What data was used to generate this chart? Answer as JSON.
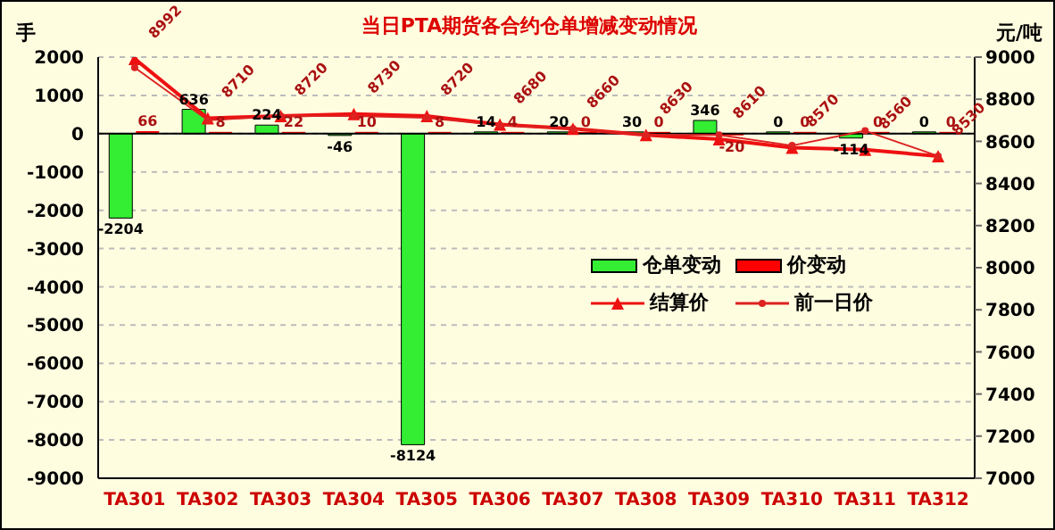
{
  "chart_data": {
    "type": "bar",
    "title": "当日PTA期货各合约仓单增减变动情况",
    "ylabel": "手",
    "y2label": "元/吨",
    "categories": [
      "TA301",
      "TA302",
      "TA303",
      "TA304",
      "TA305",
      "TA306",
      "TA307",
      "TA308",
      "TA309",
      "TA310",
      "TA311",
      "TA312"
    ],
    "series": [
      {
        "name": "仓单变动",
        "color": "#33ee33",
        "values": [
          -2204,
          636,
          224,
          -46,
          -8124,
          14,
          20,
          30,
          346,
          0,
          -114,
          0
        ],
        "value_labels": [
          "-2204",
          "636",
          "224",
          "-46",
          "-8124",
          "14",
          "20",
          "30",
          "346",
          "0",
          "-114",
          "0"
        ]
      },
      {
        "name": "价变动",
        "color": "#ff0000",
        "values": [
          66,
          8,
          22,
          10,
          8,
          4,
          0,
          0,
          -20,
          0,
          0,
          0
        ],
        "value_labels": [
          "66",
          "8",
          "22",
          "10",
          "8",
          "4",
          "0",
          "0",
          "-20",
          "0",
          "0",
          "0"
        ]
      },
      {
        "name": "结算价",
        "type": "line",
        "axis": "y2",
        "color": "#ee1111",
        "marker": "triangle",
        "values": [
          8992,
          8710,
          8720,
          8730,
          8720,
          8680,
          8660,
          8630,
          8610,
          8570,
          8560,
          8530
        ],
        "value_labels": [
          "8992",
          "8710",
          "8720",
          "8730",
          "8720",
          "8680",
          "8660",
          "8630",
          "8610",
          "8570",
          "8560",
          "8530"
        ]
      },
      {
        "name": "前一日价",
        "type": "line",
        "axis": "y2",
        "color": "#dd2222",
        "marker": "circle",
        "values": [
          8950,
          8700,
          8720,
          8720,
          8712,
          8676,
          8660,
          8630,
          8630,
          8580,
          8650,
          8530
        ]
      }
    ],
    "ylim": [
      -9000,
      2000
    ],
    "yticks": [
      -9000,
      -8000,
      -7000,
      -6000,
      -5000,
      -4000,
      -3000,
      -2000,
      -1000,
      0,
      1000,
      2000
    ],
    "y2lim": [
      7000,
      9000
    ],
    "y2ticks": [
      7000,
      7200,
      7400,
      7600,
      7800,
      8000,
      8200,
      8400,
      8600,
      8800,
      9000
    ],
    "grid": "y",
    "legend": "right"
  }
}
